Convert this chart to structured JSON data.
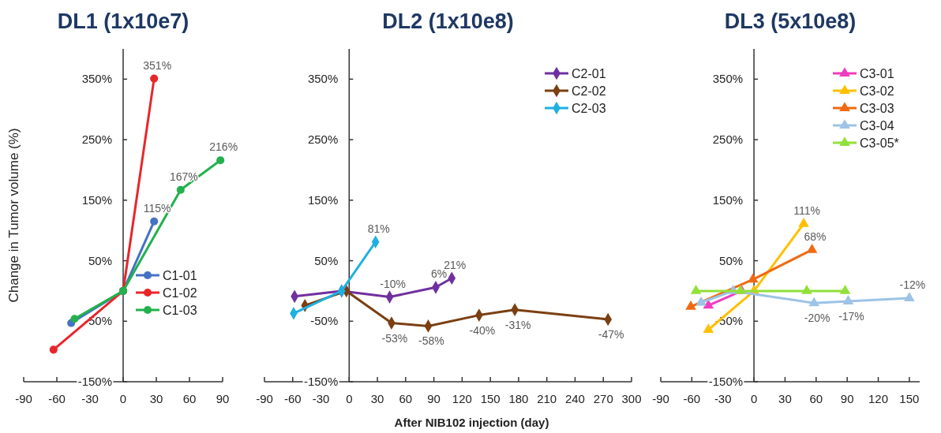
{
  "chart_data": [
    {
      "type": "line",
      "title": "DL1 (1x10e7)",
      "ylabel": "Change in Tumor volume (%)",
      "marker": "circle",
      "legend": "bottom right",
      "grid": false,
      "xlim": [
        -90,
        90
      ],
      "xticks": [
        -90,
        -60,
        -30,
        0,
        30,
        60,
        90
      ],
      "ylim": [
        -150,
        400
      ],
      "yticks": [
        {
          "value": -150,
          "label": "-150%"
        },
        {
          "value": -50,
          "label": "-50%"
        },
        {
          "value": 50,
          "label": "50%"
        },
        {
          "value": 150,
          "label": "150%"
        },
        {
          "value": 250,
          "label": "250%"
        },
        {
          "value": 350,
          "label": "350%"
        }
      ],
      "series": [
        {
          "name": "C1-01",
          "color": "#4472c4",
          "x": [
            -47,
            0,
            28
          ],
          "values": [
            -53,
            0,
            115
          ],
          "value_labels": [
            null,
            null,
            "115%"
          ]
        },
        {
          "name": "C1-02",
          "color": "#e8262a",
          "x": [
            -63,
            0,
            28
          ],
          "values": [
            -97,
            0,
            351
          ],
          "value_labels": [
            null,
            null,
            "351%"
          ]
        },
        {
          "name": "C1-03",
          "color": "#22b14c",
          "x": [
            -44,
            0,
            52,
            88
          ],
          "values": [
            -46,
            0,
            167,
            216
          ],
          "value_labels": [
            null,
            null,
            "167%",
            "216%"
          ]
        }
      ]
    },
    {
      "type": "line",
      "title": "DL2 (1x10e8)",
      "xlabel": "After NIB102 injection (day)",
      "marker": "diamond",
      "legend": "top right",
      "grid": false,
      "xlim": [
        -90,
        300
      ],
      "xticks": [
        -90,
        -60,
        -30,
        0,
        30,
        60,
        90,
        120,
        150,
        180,
        210,
        240,
        270,
        300
      ],
      "ylim": [
        -150,
        400
      ],
      "yticks": [
        {
          "value": -150,
          "label": "-150%"
        },
        {
          "value": -50,
          "label": "-50%"
        },
        {
          "value": 50,
          "label": "50%"
        },
        {
          "value": 150,
          "label": "150%"
        },
        {
          "value": 250,
          "label": "250%"
        },
        {
          "value": 350,
          "label": "350%"
        }
      ],
      "series": [
        {
          "name": "C2-01",
          "color": "#7030a0",
          "x": [
            -58,
            -8,
            43,
            92,
            109
          ],
          "values": [
            -9,
            0,
            -10,
            6,
            21
          ],
          "value_labels": [
            null,
            null,
            "-10%",
            "6%",
            "21%"
          ]
        },
        {
          "name": "C2-02",
          "color": "#7b3f12",
          "x": [
            -47,
            -3,
            45,
            84,
            138,
            176,
            275
          ],
          "values": [
            -24,
            0,
            -53,
            -58,
            -40,
            -31,
            -47
          ],
          "value_labels": [
            null,
            null,
            "-53%",
            "-58%",
            "-40%",
            "-31%",
            "-47%"
          ]
        },
        {
          "name": "C2-03",
          "color": "#1fb0e0",
          "x": [
            -59,
            -8,
            28
          ],
          "values": [
            -37,
            0,
            81
          ],
          "value_labels": [
            null,
            null,
            "81%"
          ]
        }
      ]
    },
    {
      "type": "line",
      "title": "DL3 (5x10e8)",
      "marker": "triangle",
      "legend": "top right",
      "grid": false,
      "xlim": [
        -90,
        160
      ],
      "xticks": [
        -90,
        -60,
        -30,
        0,
        30,
        60,
        90,
        120,
        150
      ],
      "ylim": [
        -150,
        400
      ],
      "yticks": [
        {
          "value": -150,
          "label": "-150%"
        },
        {
          "value": -50,
          "label": "-50%"
        },
        {
          "value": 50,
          "label": "50%"
        },
        {
          "value": 150,
          "label": "150%"
        },
        {
          "value": 250,
          "label": "250%"
        },
        {
          "value": 350,
          "label": "350%"
        }
      ],
      "series": [
        {
          "name": "C3-01",
          "color": "#f03cc0",
          "x": [
            -44,
            -12
          ],
          "values": [
            -24,
            0
          ]
        },
        {
          "name": "C3-02",
          "color": "#ffc000",
          "x": [
            -44,
            0,
            48
          ],
          "values": [
            -64,
            0,
            111
          ],
          "value_labels": [
            null,
            null,
            "111%"
          ]
        },
        {
          "name": "C3-03",
          "color": "#f06a10",
          "x": [
            -61,
            -1,
            56
          ],
          "values": [
            -26,
            19,
            68
          ],
          "value_labels": [
            null,
            null,
            "68%"
          ]
        },
        {
          "name": "C3-04",
          "color": "#9dc3e6",
          "x": [
            -51,
            -20,
            58,
            91,
            150
          ],
          "values": [
            -19,
            0,
            -20,
            -17,
            -12
          ],
          "value_labels": [
            null,
            null,
            "-20%",
            "-17%",
            "-12%"
          ]
        },
        {
          "name": "C3-05*",
          "color": "#92e03a",
          "x": [
            -56,
            -13,
            51,
            88
          ],
          "values": [
            0,
            0,
            0,
            0
          ]
        }
      ]
    }
  ]
}
